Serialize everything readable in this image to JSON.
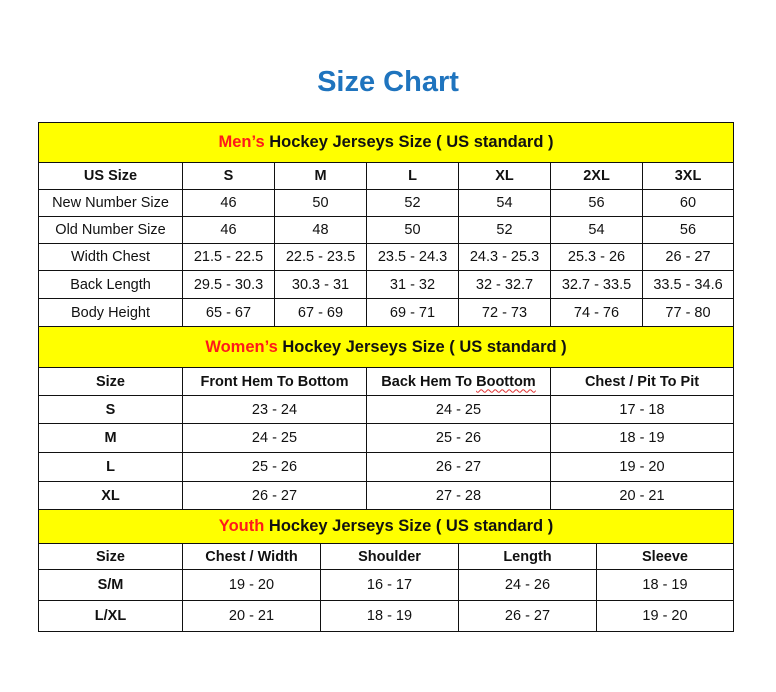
{
  "title": "Size Chart",
  "colors": {
    "title": "#1f74be",
    "header_bg": "#ffff00",
    "header_accent": "#ff1a1a"
  },
  "men": {
    "header_accent": "Men’s",
    "header_rest": " Hockey Jerseys Size ( US standard )",
    "columns": [
      "US Size",
      "S",
      "M",
      "L",
      "XL",
      "2XL",
      "3XL"
    ],
    "rows": [
      [
        "New Number Size",
        "46",
        "50",
        "52",
        "54",
        "56",
        "60"
      ],
      [
        "Old Number Size",
        "46",
        "48",
        "50",
        "52",
        "54",
        "56"
      ],
      [
        "Width Chest",
        "21.5 - 22.5",
        "22.5 - 23.5",
        "23.5 - 24.3",
        "24.3 - 25.3",
        "25.3 - 26",
        "26 - 27"
      ],
      [
        "Back Length",
        "29.5 - 30.3",
        "30.3 - 31",
        "31 - 32",
        "32 - 32.7",
        "32.7 - 33.5",
        "33.5 - 34.6"
      ],
      [
        "Body Height",
        "65 - 67",
        "67 - 69",
        "69 - 71",
        "72 - 73",
        "74 - 76",
        "77 - 80"
      ]
    ]
  },
  "women": {
    "header_accent": "Women’s",
    "header_rest": " Hockey Jerseys Size ( US standard )",
    "columns": [
      "Size",
      "Front Hem To Bottom",
      "Back Hem To Boottom",
      "Chest / Pit To Pit"
    ],
    "rows": [
      [
        "S",
        "23 - 24",
        "24 - 25",
        "17 - 18"
      ],
      [
        "M",
        "24 - 25",
        "25 - 26",
        "18 - 19"
      ],
      [
        "L",
        "25 - 26",
        "26 - 27",
        "19 - 20"
      ],
      [
        "XL",
        "26 - 27",
        "27 - 28",
        "20 - 21"
      ]
    ]
  },
  "youth": {
    "header_accent": "Youth",
    "header_rest": " Hockey Jerseys Size ( US standard )",
    "columns": [
      "Size",
      "Chest / Width",
      "Shoulder",
      "Length",
      "Sleeve"
    ],
    "rows": [
      [
        "S/M",
        "19 - 20",
        "16 - 17",
        "24 - 26",
        "18 - 19"
      ],
      [
        "L/XL",
        "20 - 21",
        "18 - 19",
        "26 - 27",
        "19 - 20"
      ]
    ]
  }
}
